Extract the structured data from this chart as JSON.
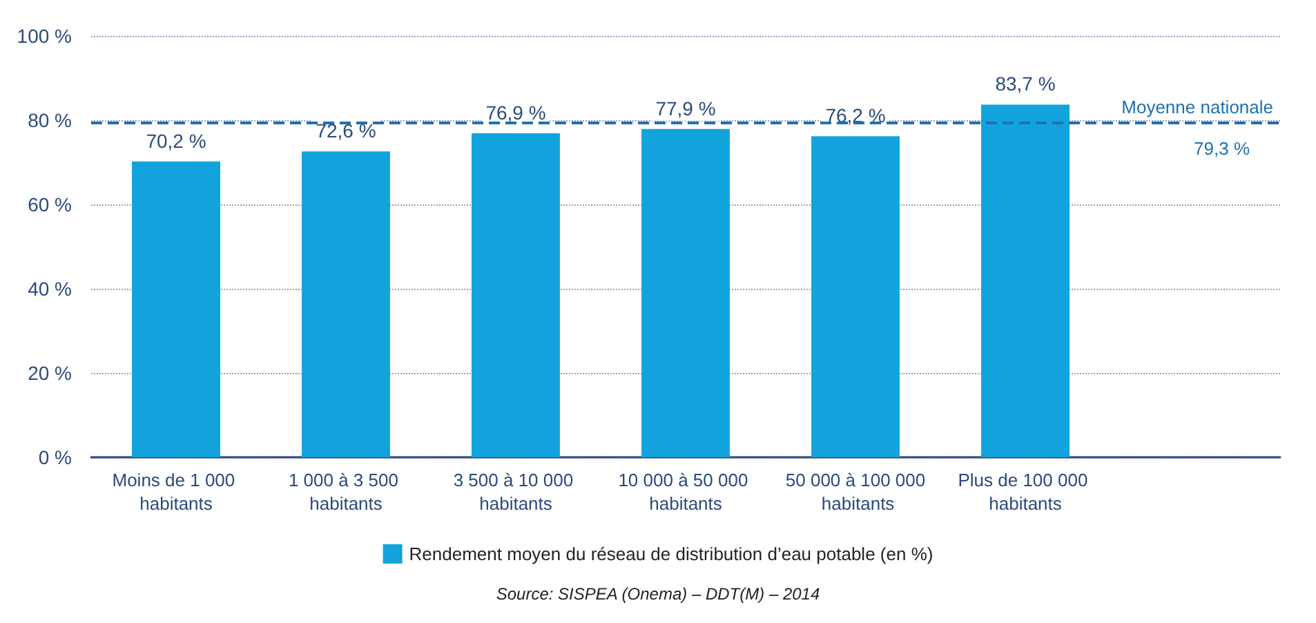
{
  "chart_data": {
    "type": "bar",
    "categories": [
      "Moins de 1 000 habitants",
      "1 000 à 3 500 habitants",
      "3 500 à 10 000 habitants",
      "10 000 à 50 000 habitants",
      "50 000 à 100 000 habitants",
      "Plus de 100 000 habitants"
    ],
    "series": [
      {
        "name": "Rendement moyen du réseau de distribution d’eau potable (en %)",
        "color": "#12a3dc",
        "values": [
          70.2,
          72.6,
          76.9,
          77.9,
          76.2,
          83.7
        ],
        "value_labels": [
          "70,2 %",
          "72,6 %",
          "76,9 %",
          "77,9 %",
          "76,2 %",
          "83,7 %"
        ]
      }
    ],
    "ylim": [
      0,
      100
    ],
    "yticks": [
      {
        "value": 0,
        "label": "0 %"
      },
      {
        "value": 20,
        "label": "20 %"
      },
      {
        "value": 40,
        "label": "40 %"
      },
      {
        "value": 60,
        "label": "60 %"
      },
      {
        "value": 80,
        "label": "80 %"
      },
      {
        "value": 100,
        "label": "100 %"
      }
    ],
    "grid": "y",
    "legend": "bottom",
    "ref_lines": [
      {
        "axis": "y",
        "value": 79.3,
        "label": "Moyenne nationale",
        "color": "#1f70b0",
        "line_style": "dashed"
      }
    ],
    "annotations": [
      {
        "text": "79,3 %",
        "y": 79.3
      },
      "Source: SISPEA (Onema) – DDT(M) – 2014"
    ]
  }
}
